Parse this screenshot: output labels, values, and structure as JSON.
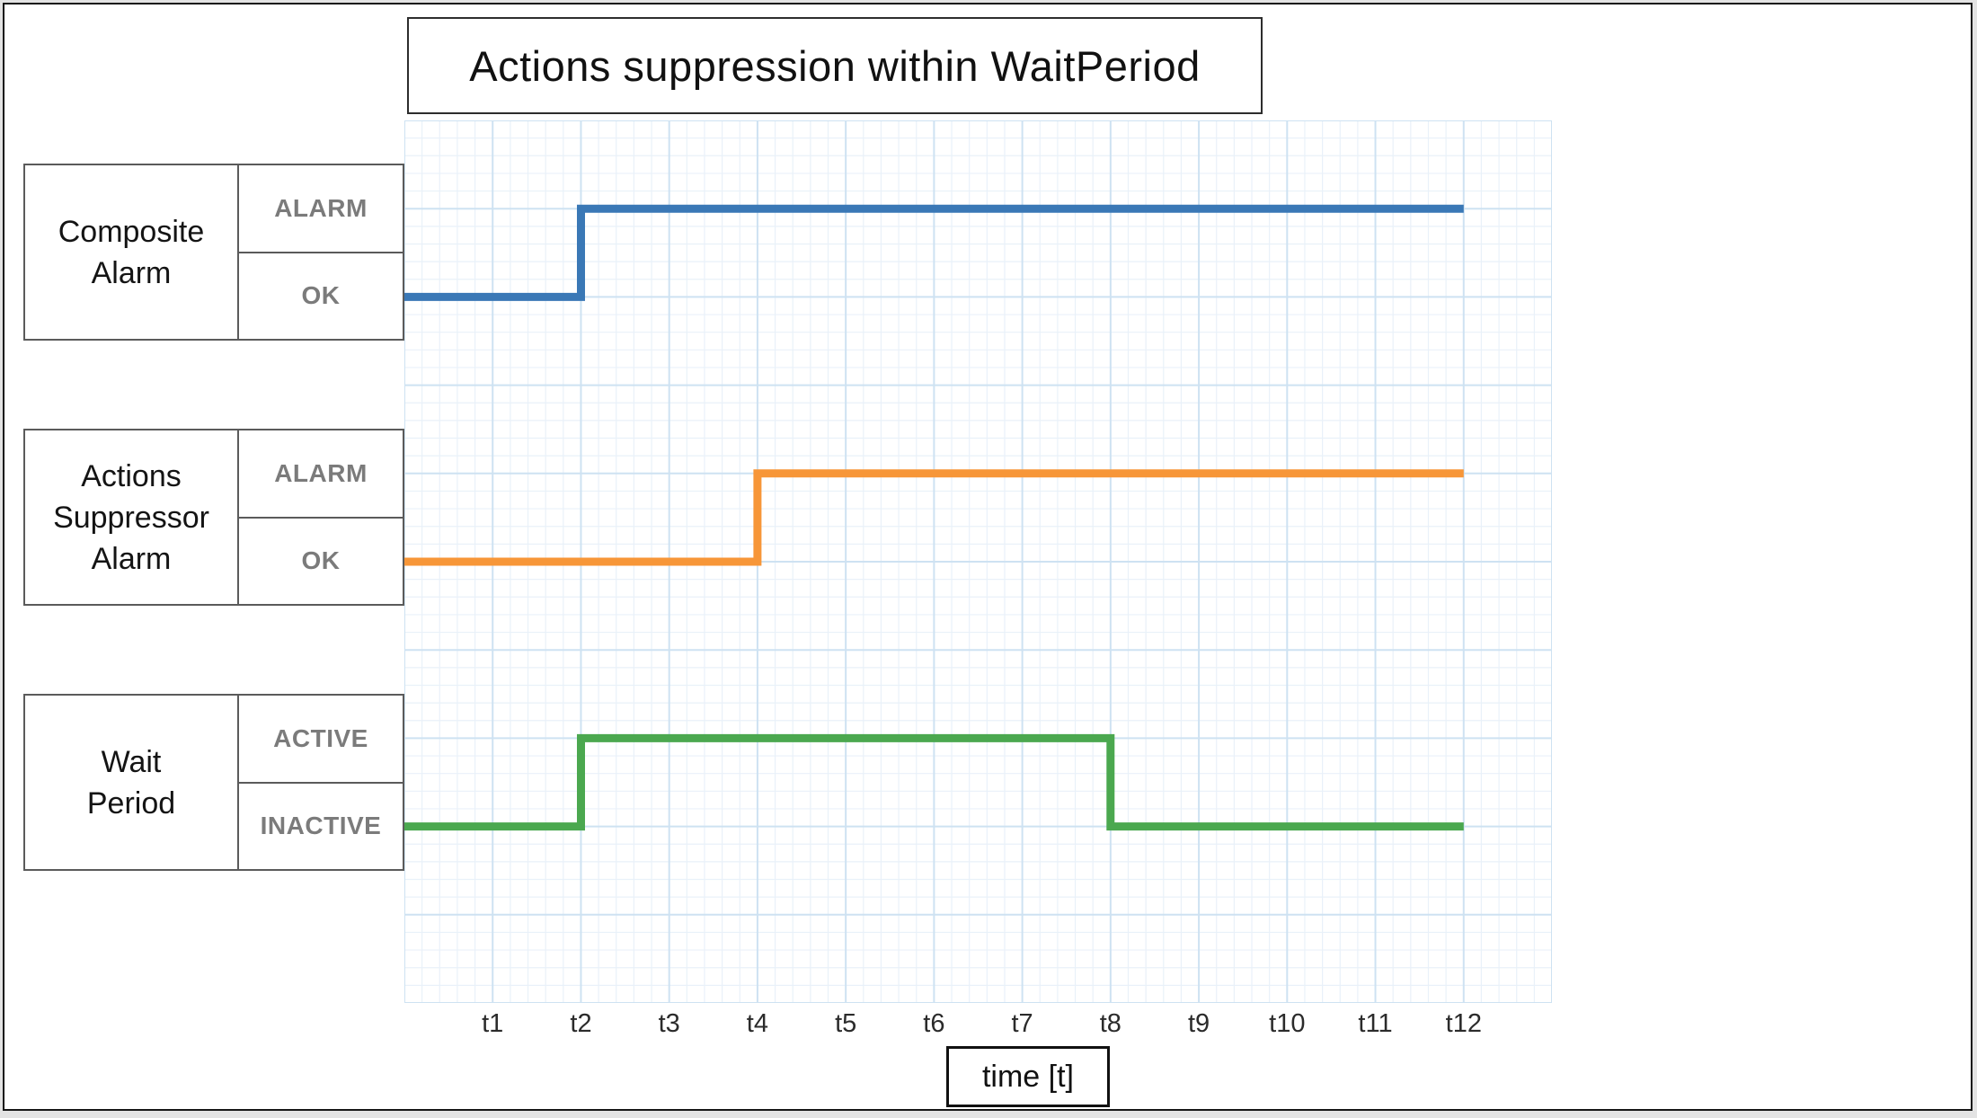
{
  "title": "Actions suppression within WaitPeriod",
  "time_axis_label": "time [t]",
  "rows": [
    {
      "name": "Composite\nAlarm",
      "state_top": "ALARM",
      "state_bottom": "OK"
    },
    {
      "name": "Actions\nSuppressor\nAlarm",
      "state_top": "ALARM",
      "state_bottom": "OK"
    },
    {
      "name": "Wait\nPeriod",
      "state_top": "ACTIVE",
      "state_bottom": "INACTIVE"
    }
  ],
  "colors": {
    "composite_alarm_line": "#3a78b6",
    "actions_suppressor_line": "#f79638",
    "wait_period_line": "#4ba84f",
    "grid_minor": "#e9f1f9",
    "grid_major": "#cee2f2"
  },
  "chart_data": {
    "type": "line",
    "subtype": "step-timing-diagram",
    "title": "Actions suppression within WaitPeriod",
    "xlabel": "time [t]",
    "x_ticks": [
      "t1",
      "t2",
      "t3",
      "t4",
      "t5",
      "t6",
      "t7",
      "t8",
      "t9",
      "t10",
      "t11",
      "t12"
    ],
    "grid": {
      "cols": 13,
      "rows": 10,
      "minor_per_major": 5,
      "grid_on": true
    },
    "series": [
      {
        "name": "Composite Alarm",
        "color_key": "composite_alarm_line",
        "high_state": "ALARM",
        "low_state": "OK",
        "high_level_row": 1,
        "low_level_row": 2,
        "points": [
          [
            0,
            2
          ],
          [
            2,
            2
          ],
          [
            2,
            1
          ],
          [
            12,
            1
          ]
        ]
      },
      {
        "name": "Actions Suppressor Alarm",
        "color_key": "actions_suppressor_line",
        "high_state": "ALARM",
        "low_state": "OK",
        "high_level_row": 4,
        "low_level_row": 5,
        "points": [
          [
            0,
            5
          ],
          [
            4,
            5
          ],
          [
            4,
            4
          ],
          [
            12,
            4
          ]
        ]
      },
      {
        "name": "Wait Period",
        "color_key": "wait_period_line",
        "high_state": "ACTIVE",
        "low_state": "INACTIVE",
        "high_level_row": 7,
        "low_level_row": 8,
        "points": [
          [
            0,
            8
          ],
          [
            2,
            8
          ],
          [
            2,
            7
          ],
          [
            8,
            7
          ],
          [
            8,
            8
          ],
          [
            12,
            8
          ]
        ]
      }
    ]
  }
}
